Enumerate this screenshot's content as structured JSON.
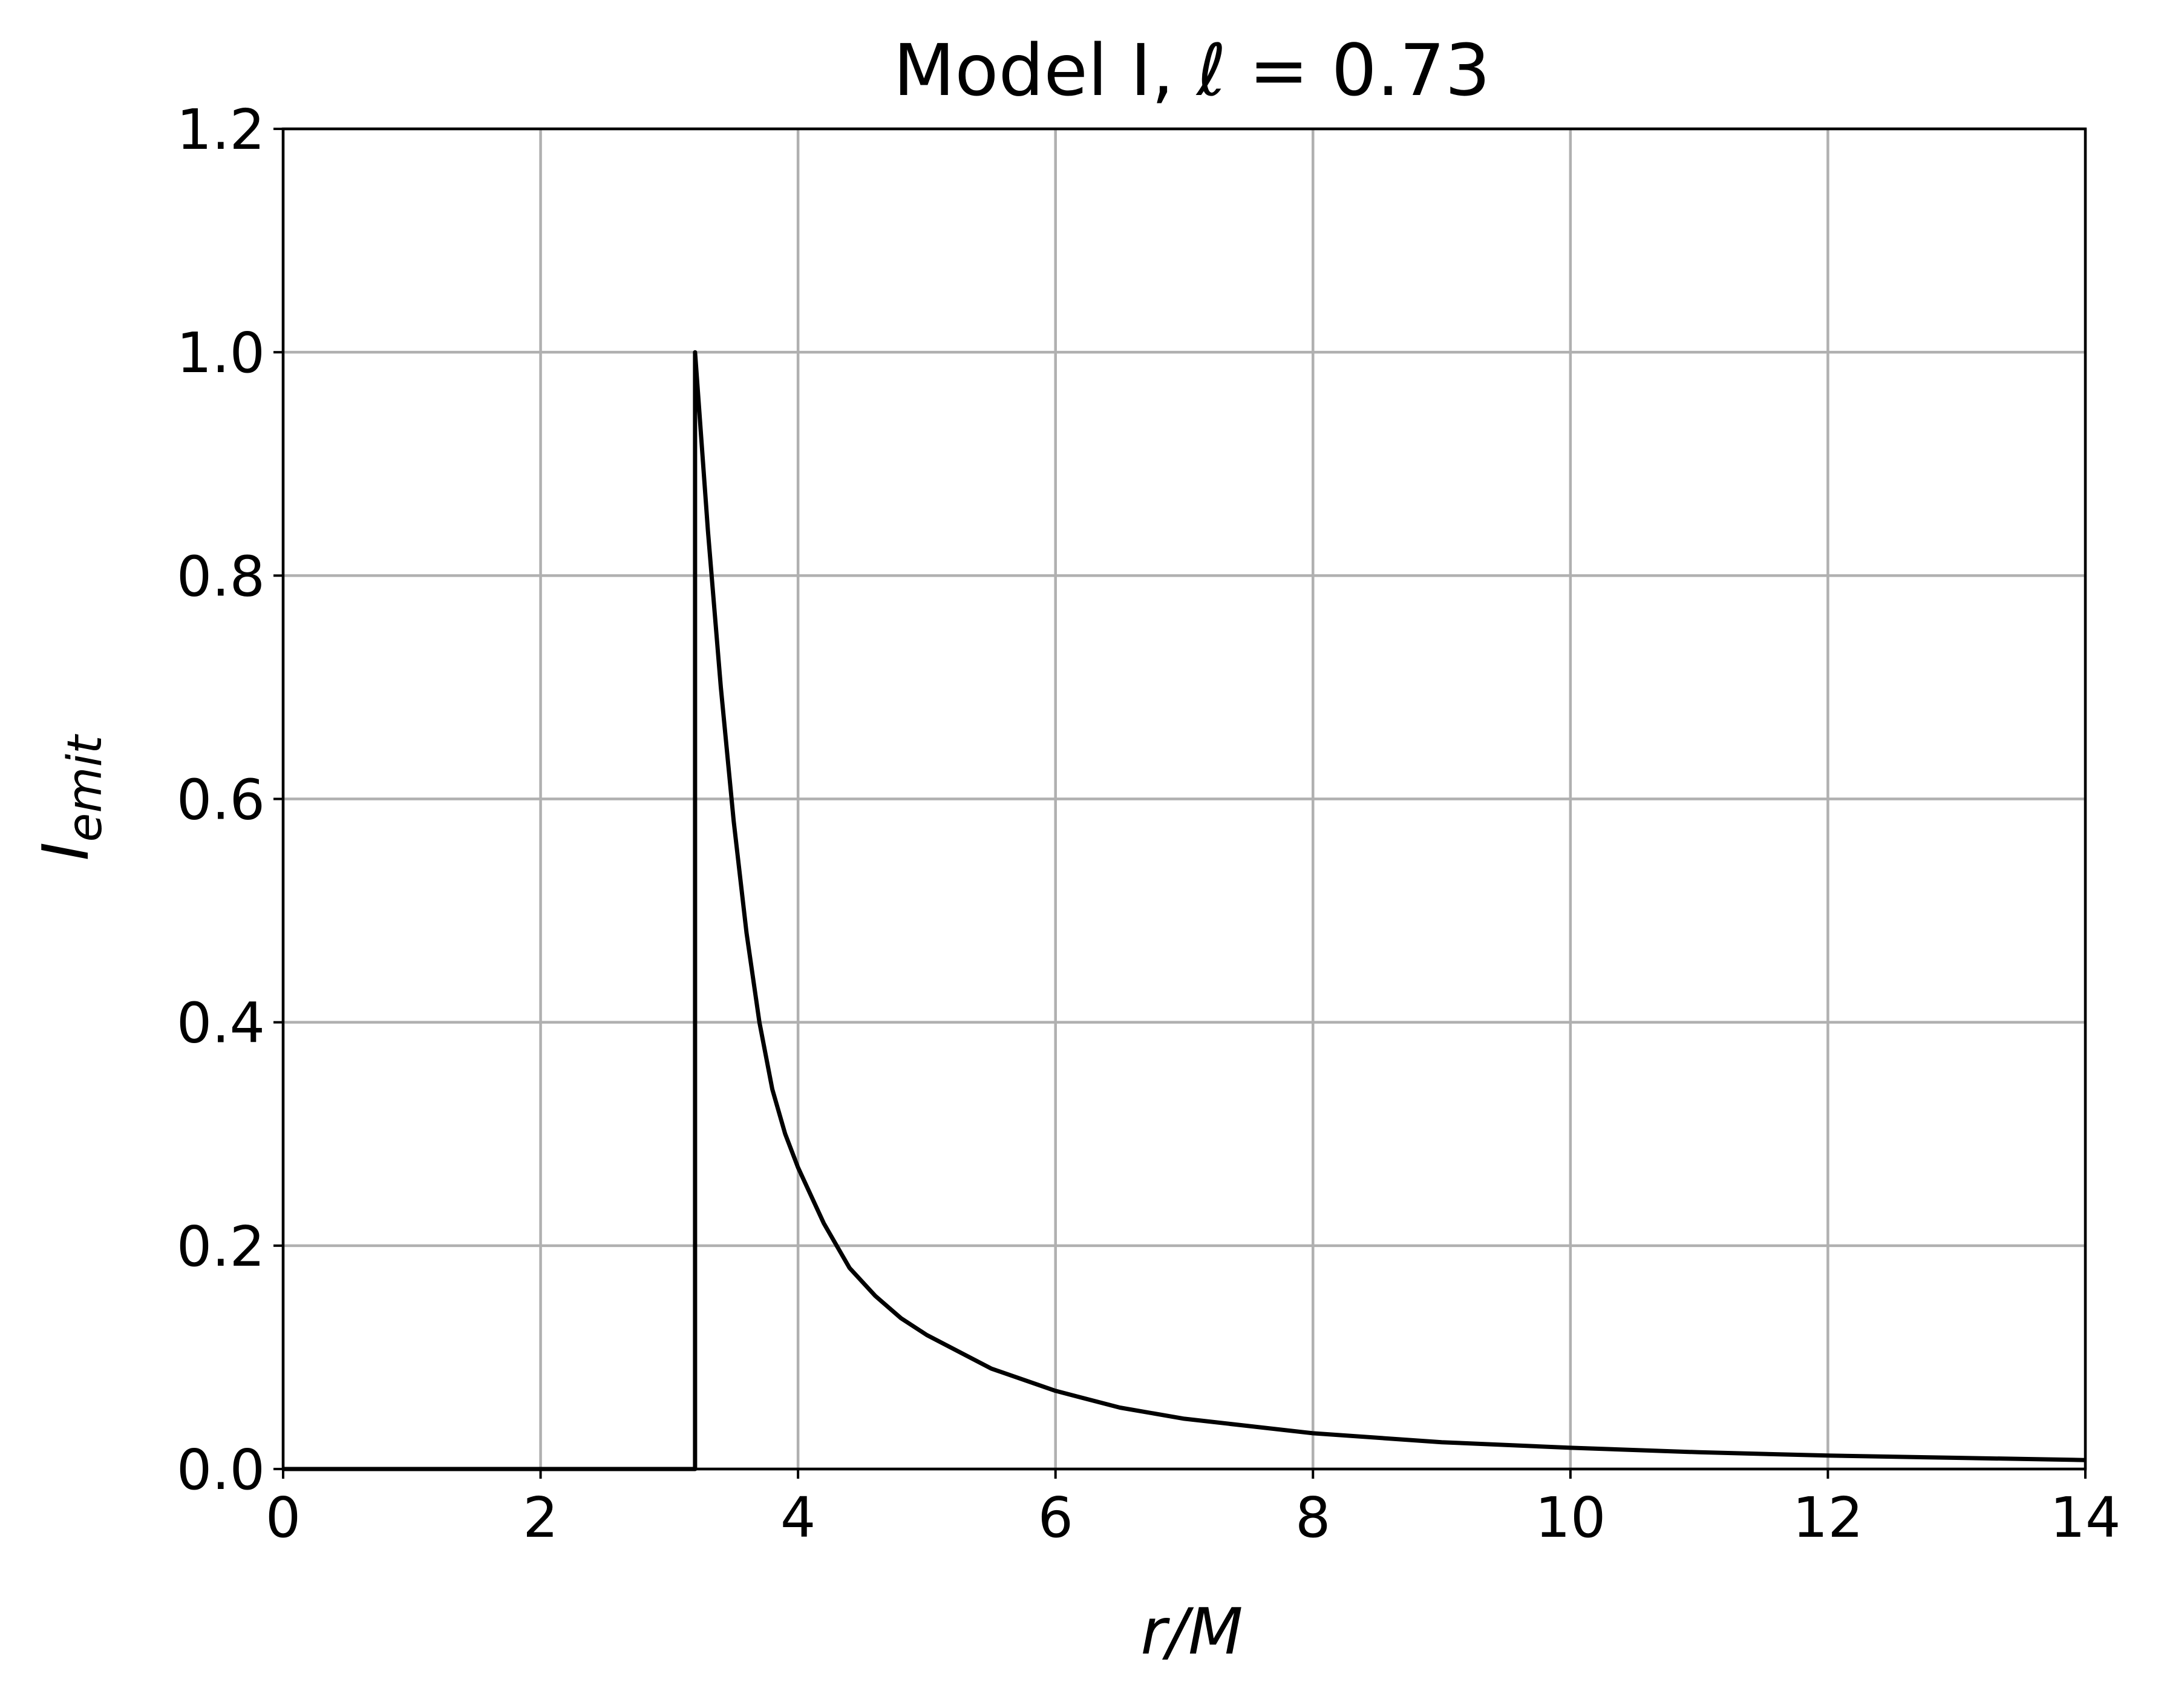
{
  "chart_data": {
    "type": "line",
    "title": "Model I, ℓ = 0.73",
    "title_parts": {
      "prefix": "Model I, ",
      "symbol": "ℓ",
      "suffix": " = 0.73"
    },
    "xlabel": "r/M",
    "ylabel": "I_emit",
    "ylabel_parts": {
      "main": "I",
      "sub": "emit"
    },
    "xlim": [
      0,
      14
    ],
    "ylim": [
      0,
      1.2
    ],
    "xticks": [
      0,
      2,
      4,
      6,
      8,
      10,
      12,
      14
    ],
    "yticks": [
      0.0,
      0.2,
      0.4,
      0.6,
      0.8,
      1.0,
      1.2
    ],
    "xtick_labels": [
      "0",
      "2",
      "4",
      "6",
      "8",
      "10",
      "12",
      "14"
    ],
    "ytick_labels": [
      "0.0",
      "0.2",
      "0.4",
      "0.6",
      "0.8",
      "1.0",
      "1.2"
    ],
    "grid": true,
    "series": [
      {
        "color": "#000000",
        "x": [
          0,
          3.2,
          3.2,
          3.3,
          3.4,
          3.5,
          3.6,
          3.7,
          3.8,
          3.9,
          4.0,
          4.2,
          4.4,
          4.6,
          4.8,
          5.0,
          5.5,
          6.0,
          6.5,
          7.0,
          8.0,
          9.0,
          10.0,
          11.0,
          12.0,
          13.0,
          14.0
        ],
        "y": [
          0,
          0,
          1.0,
          0.84,
          0.7,
          0.58,
          0.48,
          0.4,
          0.34,
          0.3,
          0.27,
          0.22,
          0.18,
          0.155,
          0.135,
          0.12,
          0.09,
          0.07,
          0.055,
          0.045,
          0.032,
          0.024,
          0.019,
          0.015,
          0.012,
          0.01,
          0.008
        ]
      }
    ]
  }
}
